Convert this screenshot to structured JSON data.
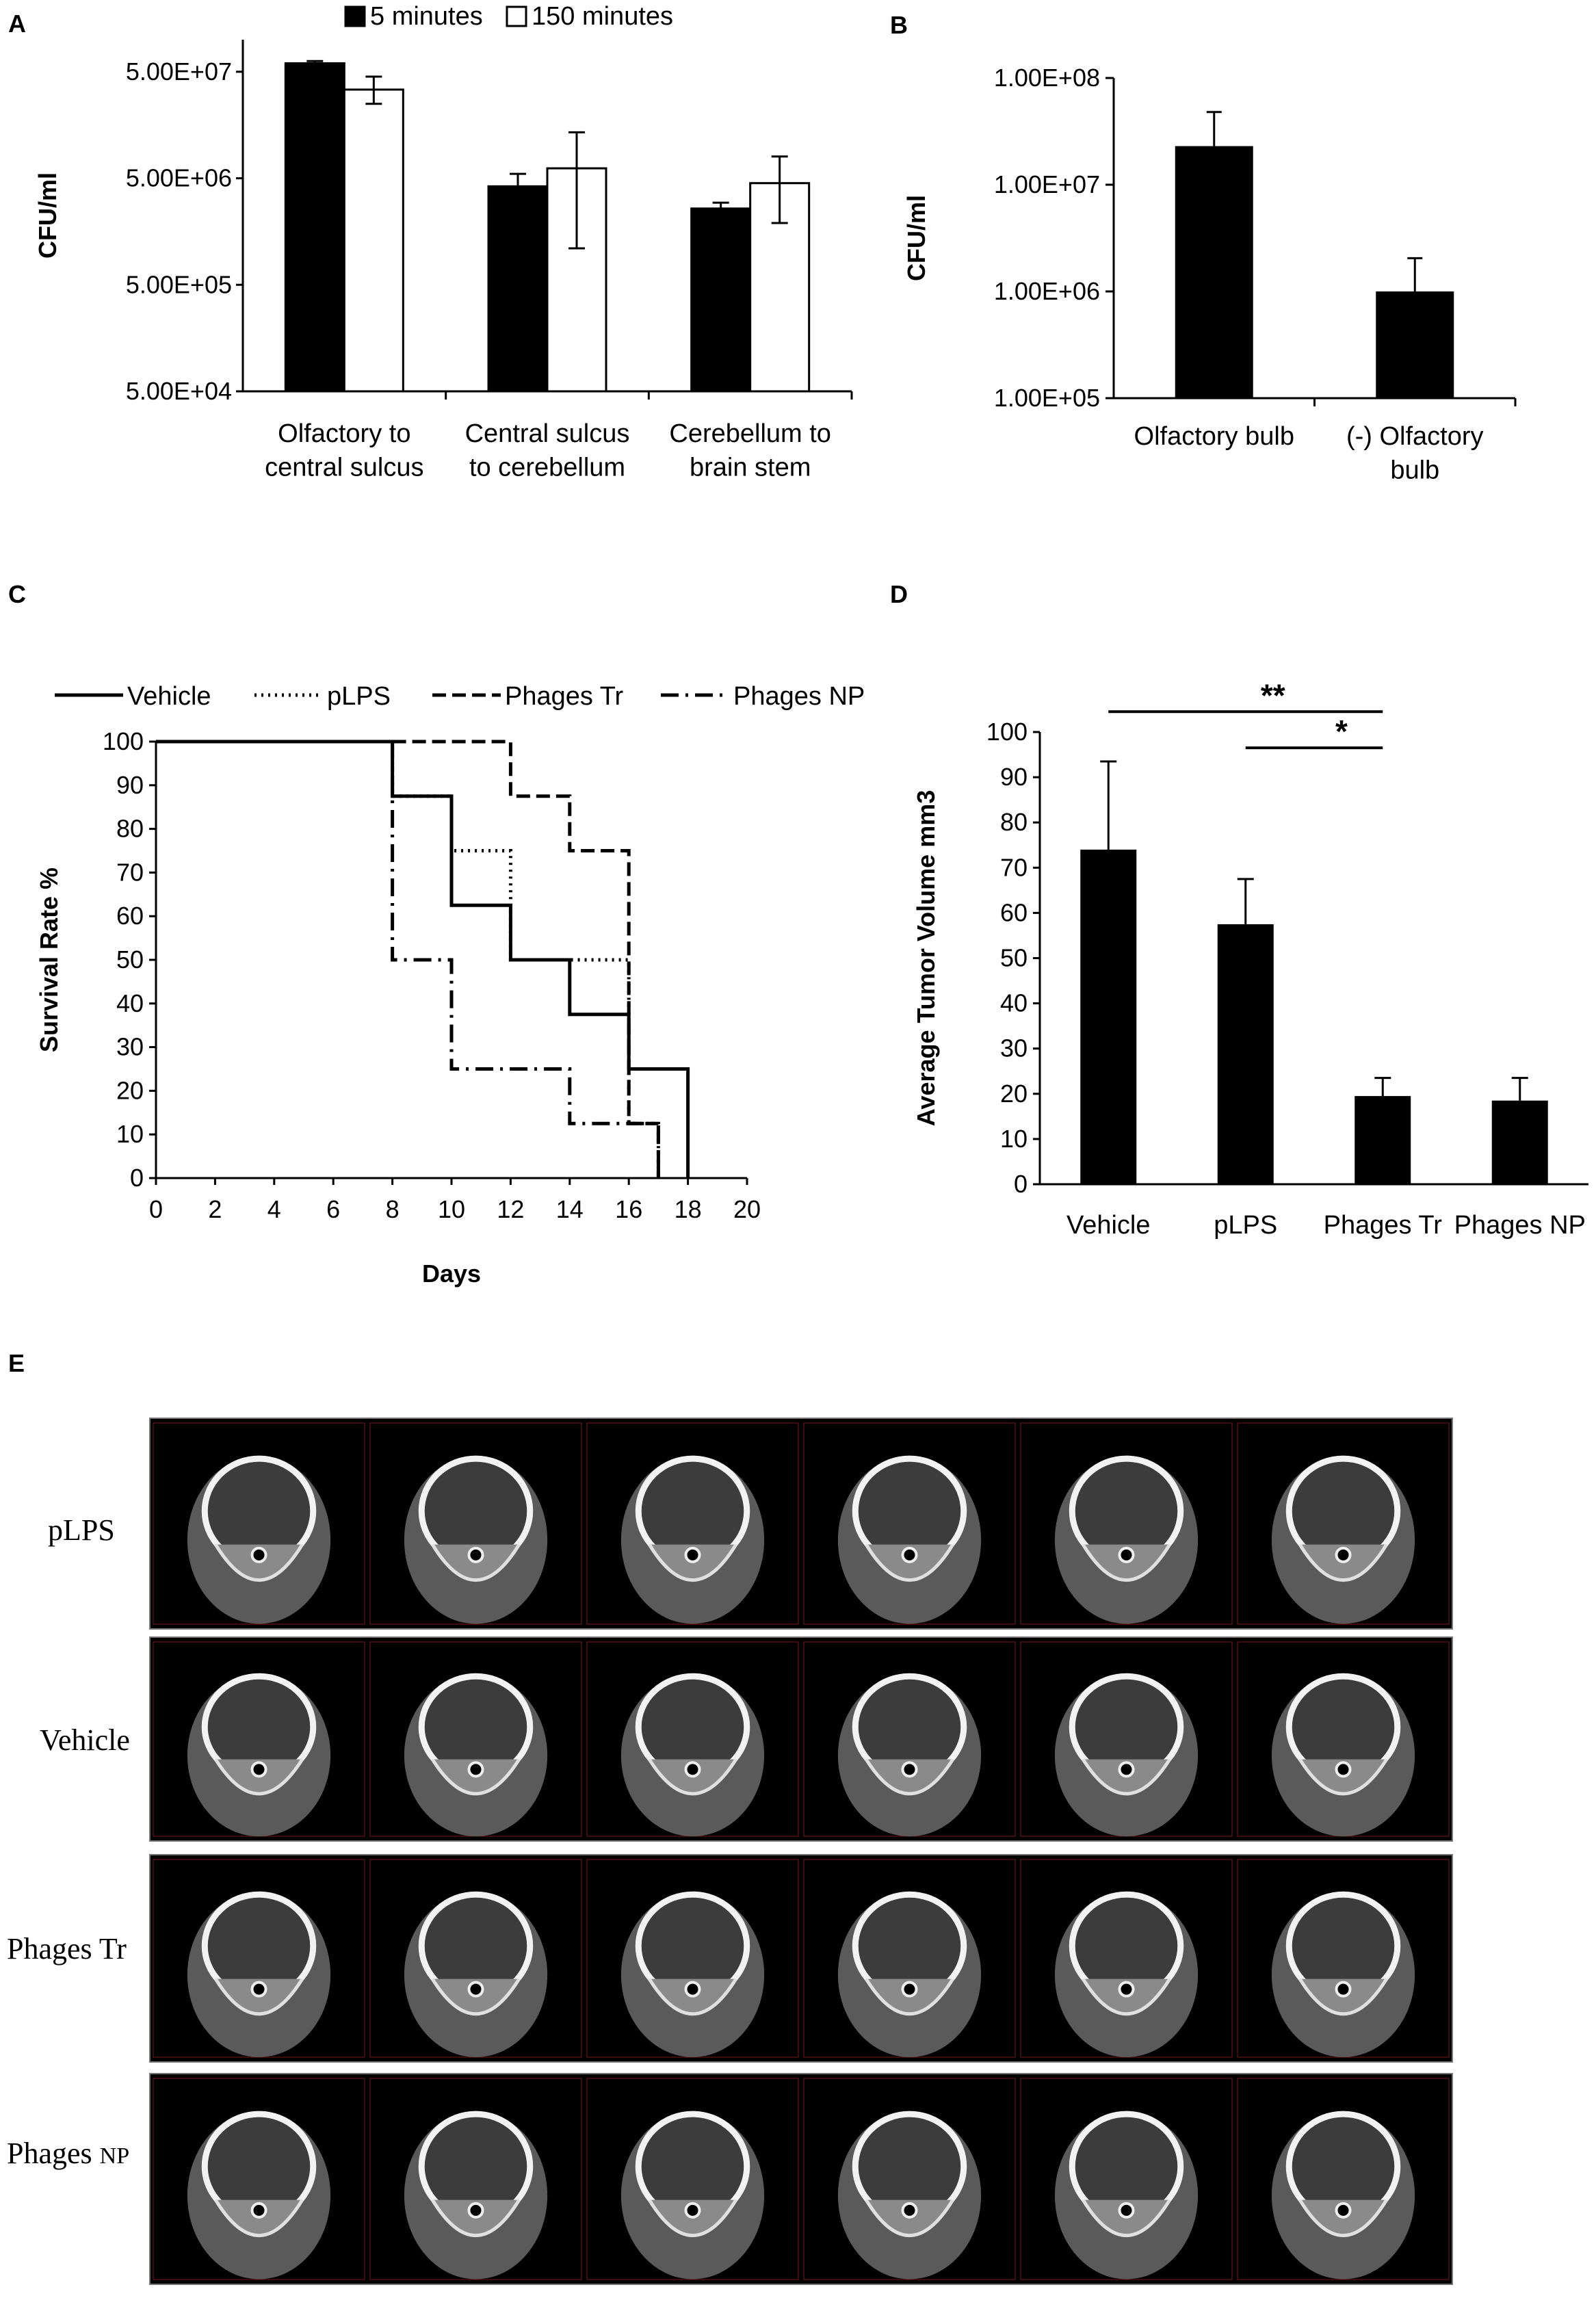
{
  "panels": {
    "A": "A",
    "B": "B",
    "C": "C",
    "D": "D",
    "E": "E"
  },
  "chart_data": [
    {
      "id": "A",
      "type": "bar",
      "ylabel": "CFU/ml",
      "yscale": "log",
      "ylim": [
        50000,
        100000000
      ],
      "yticks": [
        50000,
        500000,
        5000000,
        50000000
      ],
      "ytick_labels": [
        "5.00E+04",
        "5.00E+05",
        "5.00E+06",
        "5.00E+07"
      ],
      "categories": [
        "Olfactory to\ncentral sulcus",
        "Central sulcus\nto cerebellum",
        "Cerebellum to\nbrain stem"
      ],
      "legend_position": "top",
      "series": [
        {
          "name": "5 minutes",
          "color": "#000000",
          "values": [
            60000000,
            4200000,
            2600000
          ],
          "err_up": [
            63000000,
            5500000,
            2950000
          ],
          "err_down": [
            57000000,
            3600000,
            2400000
          ]
        },
        {
          "name": "150 minutes",
          "color": "#ffffff",
          "values": [
            34000000,
            6200000,
            4500000
          ],
          "err_up": [
            45000000,
            13500000,
            8000000
          ],
          "err_down": [
            25000000,
            1100000,
            1900000
          ]
        }
      ]
    },
    {
      "id": "B",
      "type": "bar",
      "ylabel": "CFU/ml",
      "yscale": "log",
      "ylim": [
        100000,
        100000000
      ],
      "yticks": [
        100000,
        1000000,
        10000000,
        100000000
      ],
      "ytick_labels": [
        "1.00E+05",
        "1.00E+06",
        "1.00E+07",
        "1.00E+08"
      ],
      "categories": [
        "Olfactory bulb",
        "(-) Olfactory\nbulb"
      ],
      "series": [
        {
          "name": "",
          "color": "#000000",
          "values": [
            23000000,
            1000000
          ],
          "err_up": [
            48000000,
            2050000
          ]
        }
      ]
    },
    {
      "id": "C",
      "type": "line",
      "xlabel": "Days",
      "ylabel": "Survival Rate %",
      "xlim": [
        0,
        20
      ],
      "ylim": [
        0,
        100
      ],
      "xticks": [
        0,
        2,
        4,
        6,
        8,
        10,
        12,
        14,
        16,
        18,
        20
      ],
      "yticks": [
        0,
        10,
        20,
        30,
        40,
        50,
        60,
        70,
        80,
        90,
        100
      ],
      "legend_position": "top",
      "series": [
        {
          "name": "Vehicle",
          "style": "solid",
          "x": [
            0,
            8,
            8,
            10,
            10,
            12,
            12,
            14,
            14,
            16,
            16,
            18,
            18
          ],
          "y": [
            100,
            100,
            87.5,
            87.5,
            62.5,
            62.5,
            50,
            50,
            37.5,
            37.5,
            25,
            25,
            0
          ]
        },
        {
          "name": "pLPS",
          "style": "dotted",
          "x": [
            8,
            8,
            10,
            10,
            12,
            12,
            14,
            14,
            16,
            16,
            17,
            17
          ],
          "y": [
            100,
            87.5,
            87.5,
            75,
            75,
            50,
            50,
            50,
            50,
            12.5,
            12.5,
            0
          ]
        },
        {
          "name": "Phages Tr",
          "style": "dashed",
          "x": [
            8,
            12,
            12,
            14,
            14,
            16,
            16,
            17,
            17
          ],
          "y": [
            100,
            100,
            87.5,
            87.5,
            75,
            75,
            12.5,
            12.5,
            0
          ]
        },
        {
          "name": "Phages NP",
          "style": "dashdot",
          "x": [
            8,
            8,
            10,
            10,
            14,
            14,
            17,
            17
          ],
          "y": [
            100,
            50,
            50,
            25,
            25,
            12.5,
            12.5,
            0
          ]
        }
      ]
    },
    {
      "id": "D",
      "type": "bar",
      "ylabel": "Average Tumor Volume mm3",
      "ylim": [
        0,
        100
      ],
      "yticks": [
        0,
        10,
        20,
        30,
        40,
        50,
        60,
        70,
        80,
        90,
        100
      ],
      "categories": [
        "Vehicle",
        "pLPS",
        "Phages Tr",
        "Phages NP"
      ],
      "series": [
        {
          "name": "",
          "color": "#000000",
          "values": [
            74,
            57.5,
            19.5,
            18.5
          ],
          "err_up": [
            93.5,
            67.5,
            23.5,
            23.5
          ]
        }
      ],
      "annotations": [
        {
          "text": "**",
          "from": "Vehicle",
          "to": "Phages Tr",
          "level": 104.5
        },
        {
          "text": "*",
          "from": "pLPS",
          "to": "Phages Tr",
          "level": 96.5
        }
      ]
    }
  ],
  "panel_e": {
    "rows": [
      {
        "label": "pLPS",
        "slices": 6
      },
      {
        "label": "Vehicle",
        "slices": 6
      },
      {
        "label": "Phages Tr",
        "slices": 6
      },
      {
        "label_main": "Phages ",
        "label_small": "NP",
        "slices": 6
      }
    ]
  }
}
